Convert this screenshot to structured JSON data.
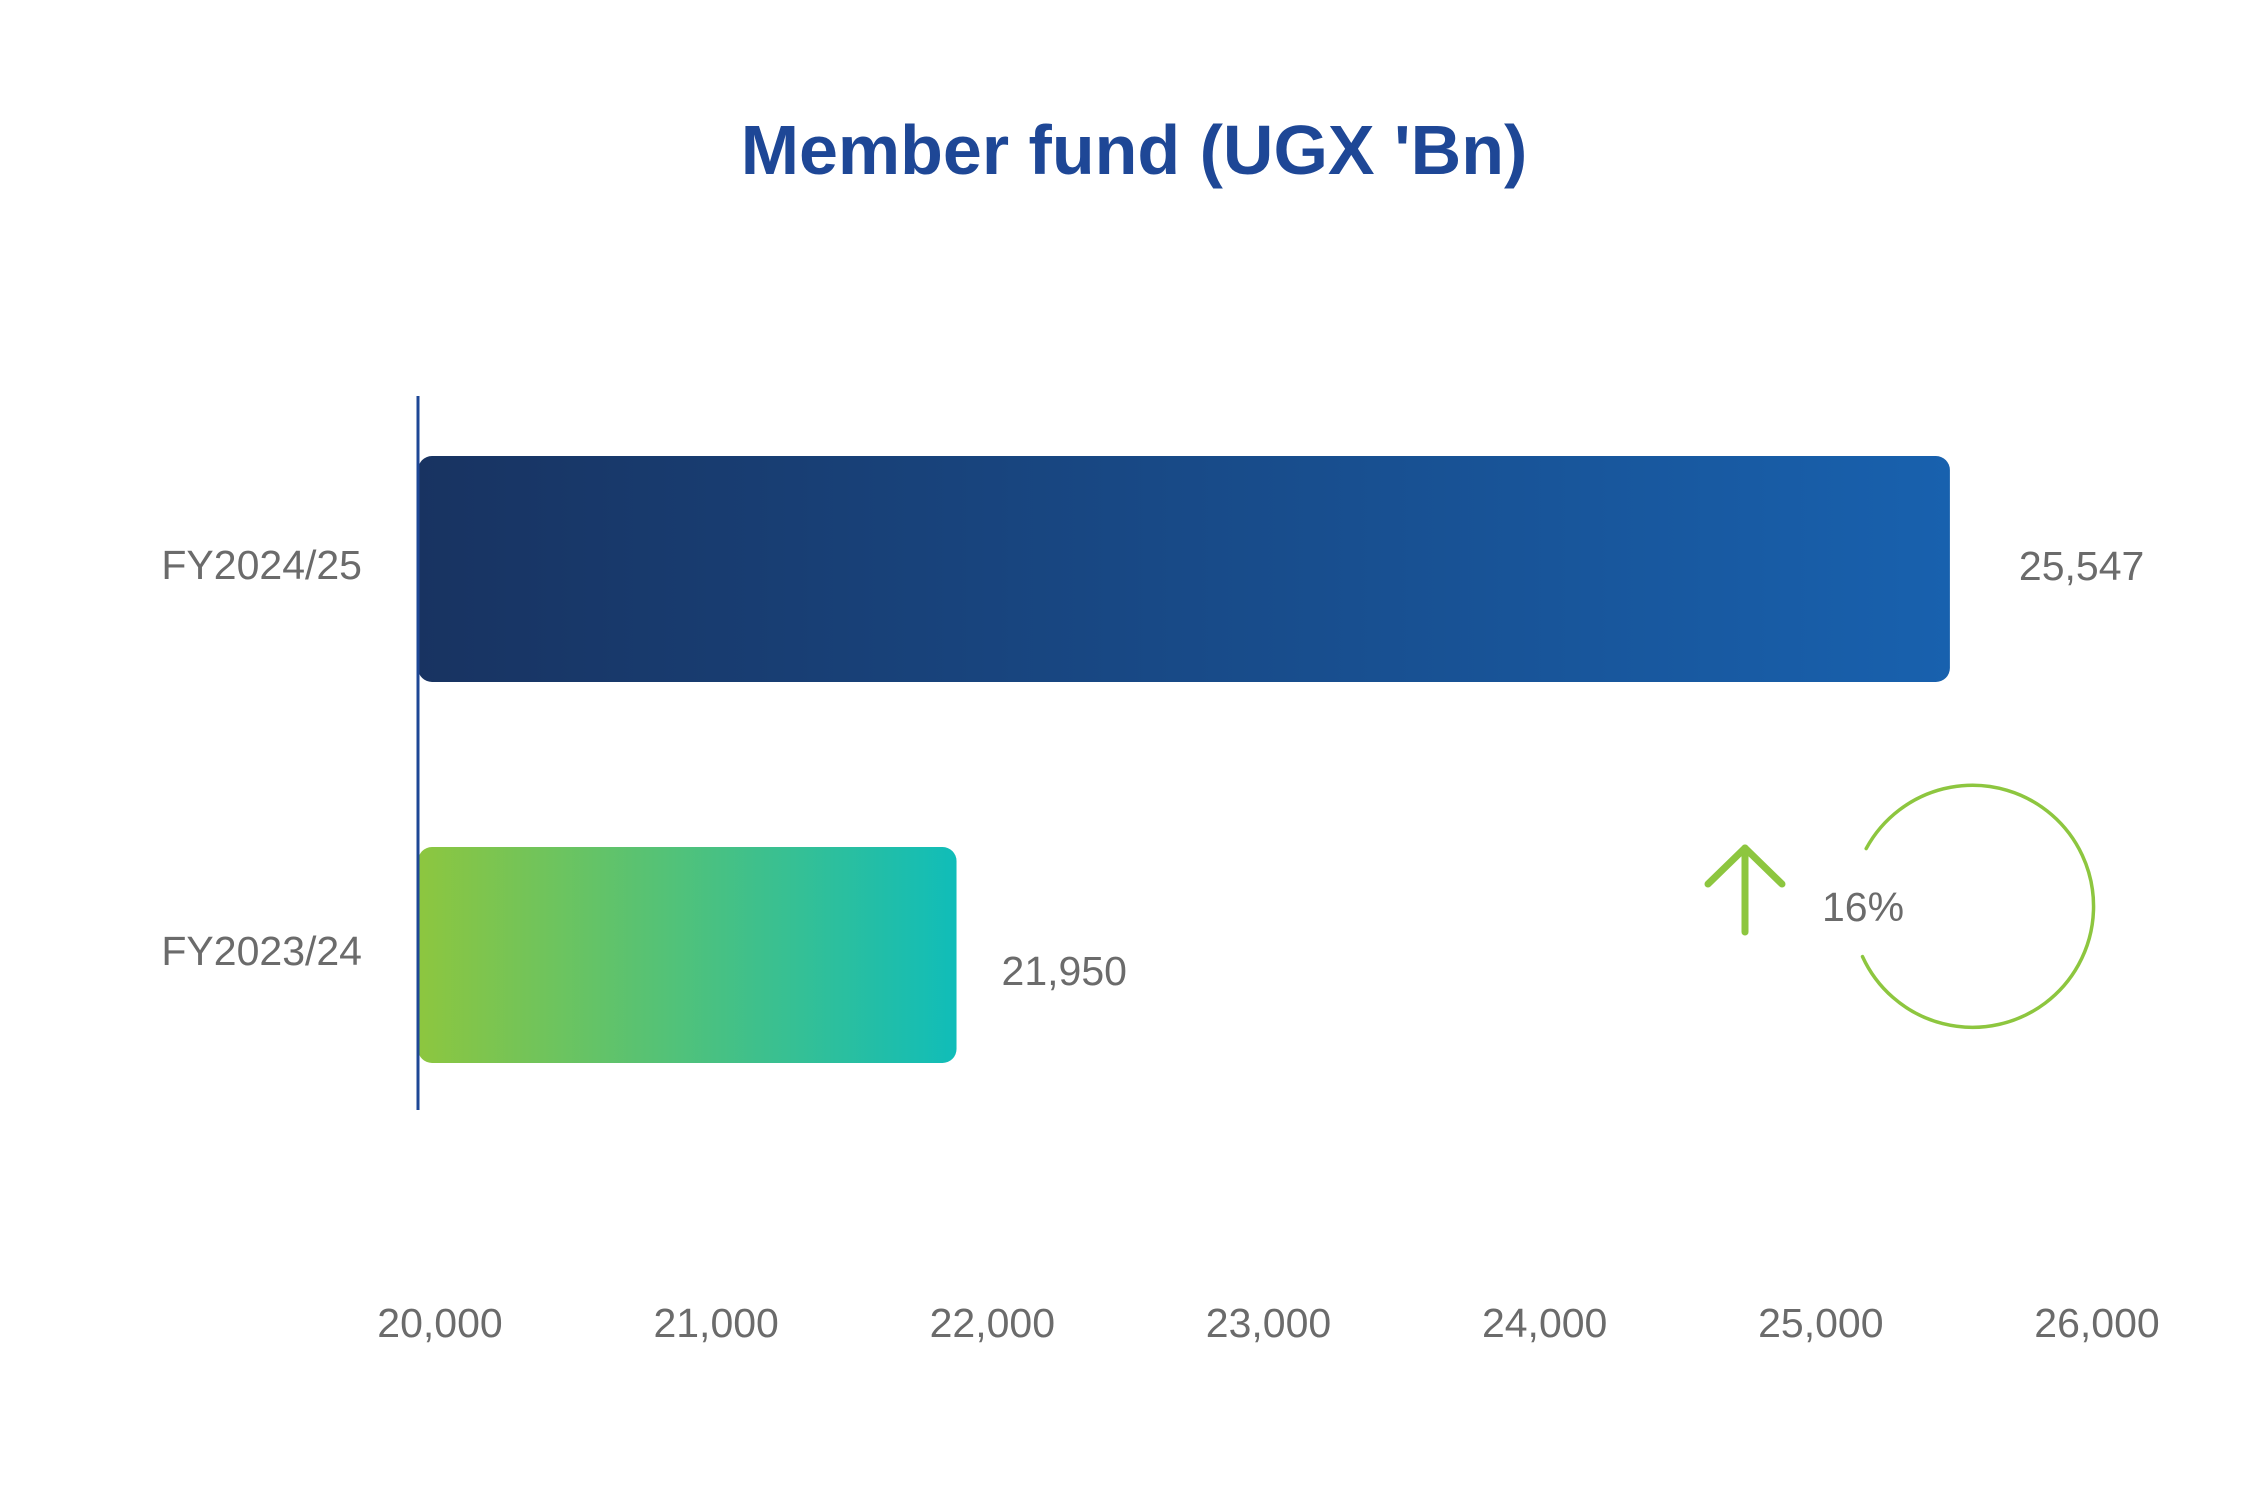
{
  "chart_data": {
    "type": "bar",
    "orientation": "horizontal",
    "title": "Member fund (UGX 'Bn)",
    "xlabel": "",
    "ylabel": "",
    "categories": [
      "FY2024/25",
      "FY2023/24"
    ],
    "values": [
      25547,
      21950
    ],
    "value_labels": [
      "25,547",
      "21,950"
    ],
    "xlim": [
      20000,
      26000
    ],
    "xticks": [
      20000,
      21000,
      22000,
      23000,
      24000,
      25000,
      26000
    ],
    "xtick_labels": [
      "20,000",
      "21,000",
      "22,000",
      "23,000",
      "24,000",
      "25,000",
      "26,000"
    ],
    "grid": false,
    "legend": "none",
    "annotation": {
      "text": "16%",
      "icon": "up-arrow-icon"
    },
    "colors": {
      "title": "#1E4796",
      "axis_line": "#1E4796",
      "text": "#6B6B6B",
      "bar_2024_25": [
        "#183361",
        "#1861AE"
      ],
      "bar_2023_24": [
        "#8DC63F",
        "#10BDB9"
      ],
      "growth_green": "#8DC63F"
    }
  }
}
